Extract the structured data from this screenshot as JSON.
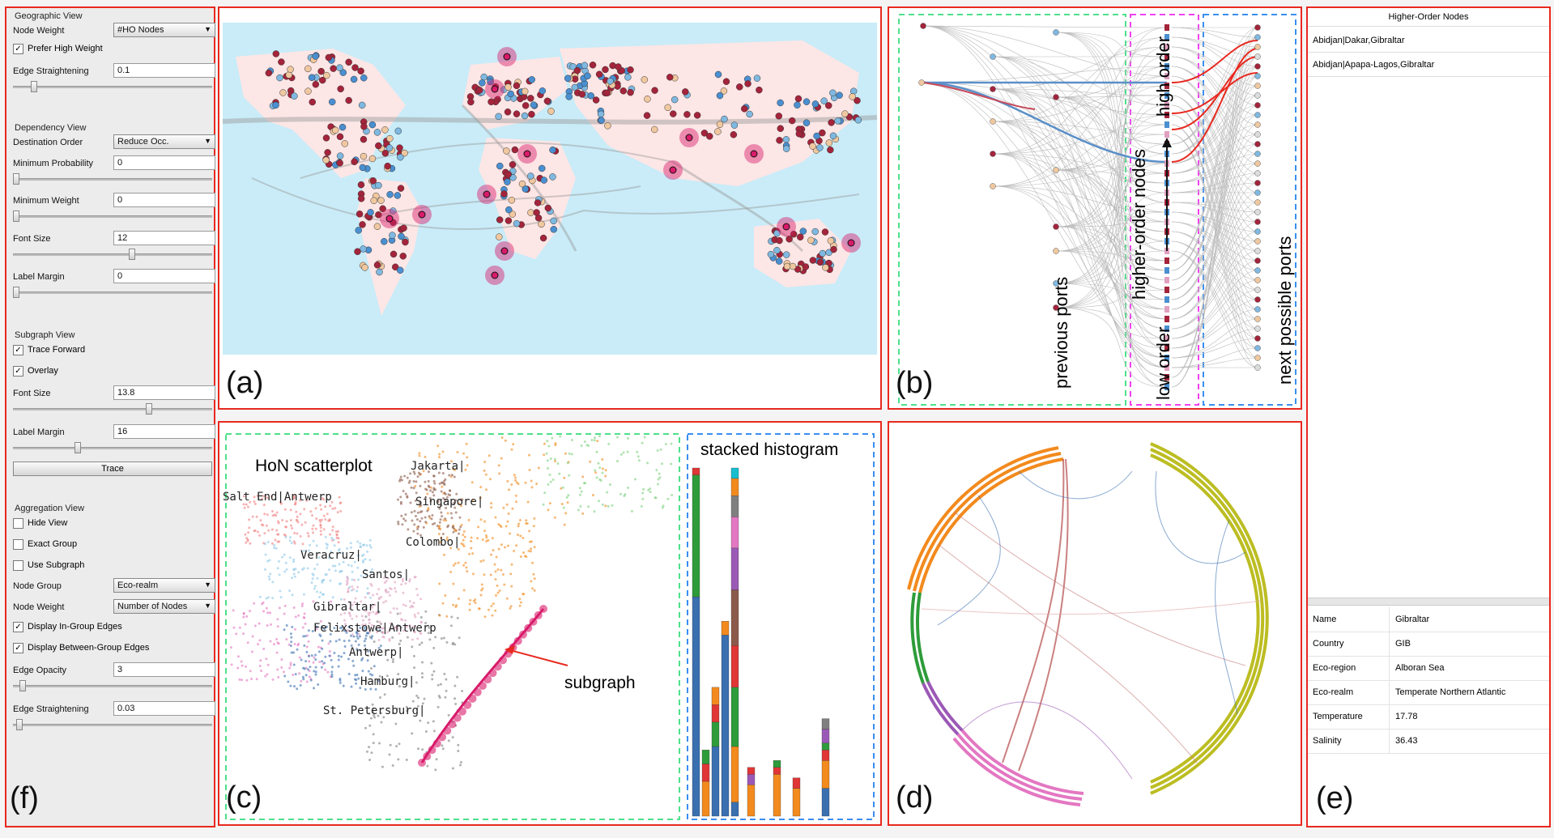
{
  "panels": {
    "a": "(a)",
    "b": "(b)",
    "c": "(c)",
    "d": "(d)",
    "e": "(e)",
    "f": "(f)"
  },
  "controls": {
    "geo": {
      "title": "Geographic View",
      "node_weight_label": "Node Weight",
      "node_weight_value": "#HO Nodes",
      "prefer_high_weight": "Prefer High Weight",
      "edge_straightening_label": "Edge Straightening",
      "edge_straightening_value": "0.1"
    },
    "dep": {
      "title": "Dependency View",
      "dest_order_label": "Destination Order",
      "dest_order_value": "Reduce Occ.",
      "min_prob_label": "Minimum Probability",
      "min_prob_value": "0",
      "min_weight_label": "Minimum Weight",
      "min_weight_value": "0",
      "font_size_label": "Font Size",
      "font_size_value": "12",
      "label_margin_label": "Label Margin",
      "label_margin_value": "0"
    },
    "sub": {
      "title": "Subgraph View",
      "trace_forward": "Trace Forward",
      "overlay": "Overlay",
      "font_size_label": "Font Size",
      "font_size_value": "13.8",
      "label_margin_label": "Label Margin",
      "label_margin_value": "16",
      "trace_button": "Trace"
    },
    "agg": {
      "title": "Aggregation View",
      "hide_view": "Hide View",
      "exact_group": "Exact Group",
      "use_subgraph": "Use Subgraph",
      "node_group_label": "Node Group",
      "node_group_value": "Eco-realm",
      "node_weight_label": "Node Weight",
      "node_weight_value": "Number of Nodes",
      "display_in_group": "Display In-Group Edges",
      "display_between_group": "Display Between-Group Edges",
      "edge_opacity_label": "Edge Opacity",
      "edge_opacity_value": "3",
      "edge_straightening_label": "Edge Straightening",
      "edge_straightening_value": "0.03"
    }
  },
  "dependency_view": {
    "previous_ports": "previous ports",
    "higher_order_nodes": "higher-order nodes",
    "low_order": "low order",
    "high_order": "high order",
    "next_possible_ports": "next possible ports"
  },
  "scatter": {
    "title": "HoN scatterplot",
    "histogram_title": "stacked histogram",
    "subgraph_label": "subgraph",
    "labels": [
      "Jakarta|",
      "Salt End|Antwerp",
      "Singapore|",
      "Colombo|",
      "Veracruz|",
      "Santos|",
      "Gibraltar|",
      "Felixstowe|Antwerp",
      "Antwerp|",
      "Hamburg|",
      "St. Petersburg|"
    ]
  },
  "histogram": {
    "colors": [
      "#3a6fb0",
      "#2e9c3a",
      "#e03636",
      "#f28a1e",
      "#9b59b6",
      "#8b5a4a",
      "#e377c2",
      "#7f7f7f",
      "#bcbd22",
      "#17becf"
    ],
    "stacks": [
      [
        [
          0.63,
          0
        ],
        [
          0.35,
          1
        ],
        [
          0.02,
          2
        ]
      ],
      [
        [
          0.1,
          3
        ],
        [
          0.05,
          2
        ],
        [
          0.04,
          1
        ]
      ],
      [
        [
          0.2,
          0
        ],
        [
          0.07,
          1
        ],
        [
          0.05,
          2
        ],
        [
          0.05,
          3
        ]
      ],
      [
        [
          0.52,
          0
        ],
        [
          0.04,
          3
        ]
      ],
      [
        [
          0.04,
          0
        ],
        [
          0.16,
          3
        ],
        [
          0.17,
          1
        ],
        [
          0.12,
          2
        ],
        [
          0.16,
          5
        ],
        [
          0.12,
          4
        ],
        [
          0.09,
          6
        ],
        [
          0.06,
          7
        ],
        [
          0.05,
          3
        ],
        [
          0.03,
          9
        ]
      ],
      [
        [
          0.09,
          3
        ],
        [
          0.03,
          4
        ],
        [
          0.02,
          2
        ]
      ],
      [
        [
          0.12,
          3
        ],
        [
          0.02,
          2
        ],
        [
          0.02,
          1
        ]
      ],
      [
        [
          0.08,
          3
        ],
        [
          0.03,
          2
        ]
      ],
      [
        [
          0.08,
          0
        ],
        [
          0.08,
          3
        ],
        [
          0.03,
          2
        ],
        [
          0.02,
          1
        ],
        [
          0.04,
          4
        ],
        [
          0.03,
          7
        ]
      ]
    ]
  },
  "higher_order_nodes": {
    "header": "Higher-Order Nodes",
    "items": [
      "Abidjan|Dakar,Gibraltar",
      "Abidjan|Apapa-Lagos,Gibraltar"
    ]
  },
  "properties": [
    {
      "key": "Name",
      "value": "Gibraltar"
    },
    {
      "key": "Country",
      "value": "GIB"
    },
    {
      "key": "Eco-region",
      "value": "Alboran Sea"
    },
    {
      "key": "Eco-realm",
      "value": "Temperate Northern Atlantic"
    },
    {
      "key": "Temperature",
      "value": "17.78"
    },
    {
      "key": "Salinity",
      "value": "36.43"
    }
  ],
  "colors": {
    "frame": "#e8291f",
    "ocean": "#c9ecf8",
    "land": "#fde6e6",
    "highlight": "#d81b6a"
  }
}
